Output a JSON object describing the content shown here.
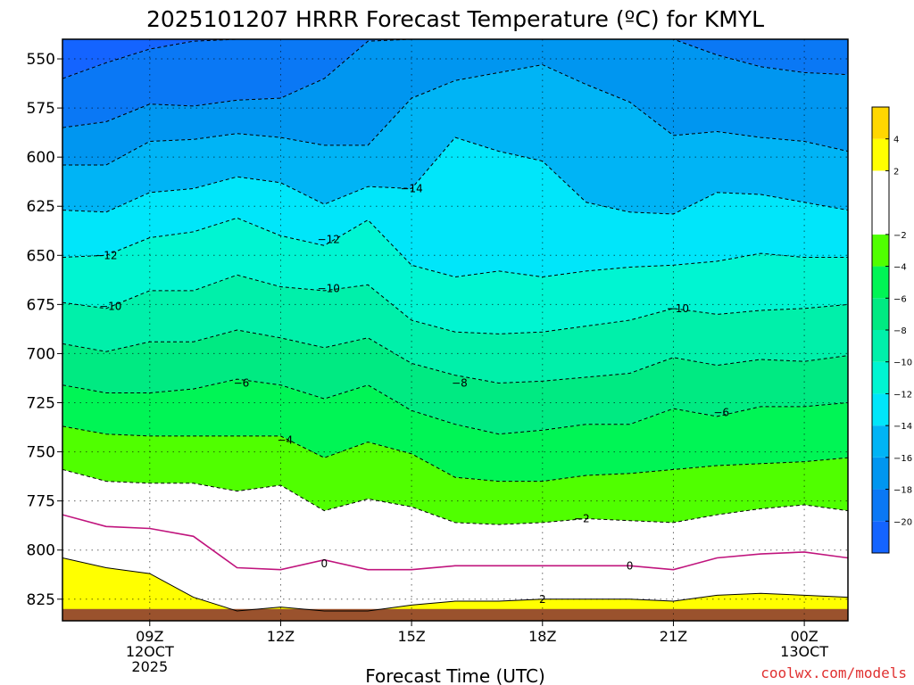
{
  "title": "2025101207 HRRR Forecast Temperature (ºC) for KMYL",
  "xlabel": "Forecast Time (UTC)",
  "credit": "coolwx.com/models",
  "chart_data": {
    "type": "contour",
    "variable": "Temperature (°C)",
    "y_axis": {
      "ticks": [
        550,
        575,
        600,
        625,
        650,
        675,
        700,
        725,
        750,
        775,
        800,
        825
      ],
      "range": [
        540,
        836
      ],
      "inverted": true
    },
    "x_axis": {
      "range_hours": [
        7,
        25
      ],
      "ticks": [
        {
          "hour": 9,
          "lines": [
            "09Z",
            "12OCT",
            "2025"
          ]
        },
        {
          "hour": 12,
          "lines": [
            "12Z"
          ]
        },
        {
          "hour": 15,
          "lines": [
            "15Z"
          ]
        },
        {
          "hour": 18,
          "lines": [
            "18Z"
          ]
        },
        {
          "hour": 21,
          "lines": [
            "21Z"
          ]
        },
        {
          "hour": 24,
          "lines": [
            "00Z",
            "13OCT"
          ]
        }
      ]
    },
    "grid": "dotted",
    "hours": [
      7,
      8,
      9,
      10,
      11,
      12,
      13,
      14,
      15,
      16,
      17,
      18,
      19,
      20,
      21,
      22,
      23,
      24,
      25
    ],
    "isotherms": [
      {
        "level": -20,
        "p": [
          560,
          552,
          545,
          541,
          540,
          540,
          540,
          540,
          540,
          540,
          540,
          540,
          540,
          540,
          540,
          540,
          540,
          540,
          540
        ]
      },
      {
        "level": -18,
        "p": [
          585,
          582,
          573,
          574,
          571,
          570,
          560,
          541,
          540,
          540,
          540,
          540,
          540,
          540,
          540,
          548,
          554,
          557,
          558
        ]
      },
      {
        "level": -16,
        "p": [
          604,
          604,
          592,
          591,
          588,
          590,
          594,
          594,
          570,
          561,
          557,
          553,
          563,
          572,
          589,
          587,
          590,
          592,
          597
        ]
      },
      {
        "level": -14,
        "p": [
          627,
          628,
          618,
          616,
          610,
          613,
          624,
          615,
          616,
          590,
          597,
          602,
          623,
          628,
          629,
          618,
          619,
          623,
          627
        ]
      },
      {
        "level": -12,
        "p": [
          651,
          650,
          641,
          638,
          631,
          640,
          645,
          632,
          655,
          661,
          658,
          661,
          658,
          656,
          655,
          653,
          649,
          651,
          651
        ]
      },
      {
        "level": -10,
        "p": [
          674,
          677,
          668,
          668,
          660,
          666,
          668,
          665,
          683,
          689,
          690,
          689,
          686,
          683,
          677,
          680,
          678,
          677,
          675
        ]
      },
      {
        "level": -8,
        "p": [
          695,
          699,
          694,
          694,
          688,
          692,
          697,
          692,
          705,
          711,
          715,
          714,
          712,
          710,
          702,
          706,
          703,
          704,
          701
        ]
      },
      {
        "level": -6,
        "p": [
          716,
          720,
          720,
          718,
          713,
          716,
          723,
          716,
          729,
          736,
          741,
          739,
          736,
          736,
          728,
          732,
          727,
          727,
          725
        ]
      },
      {
        "level": -4,
        "p": [
          737,
          741,
          742,
          742,
          742,
          742,
          753,
          745,
          751,
          763,
          765,
          765,
          762,
          761,
          759,
          757,
          756,
          755,
          753
        ]
      },
      {
        "level": -2,
        "p": [
          759,
          765,
          766,
          766,
          770,
          767,
          780,
          774,
          778,
          786,
          787,
          786,
          784,
          785,
          786,
          782,
          779,
          777,
          780
        ]
      },
      {
        "level": 0,
        "p": [
          782,
          788,
          789,
          793,
          809,
          810,
          805,
          810,
          810,
          808,
          808,
          808,
          808,
          808,
          810,
          804,
          802,
          801,
          804
        ]
      },
      {
        "level": 2,
        "p": [
          804,
          809,
          812,
          824,
          831,
          829,
          831,
          831,
          828,
          826,
          826,
          825,
          825,
          825,
          826,
          823,
          822,
          823,
          824
        ]
      }
    ],
    "contour_labels": [
      {
        "text": "−14",
        "hour": 15,
        "p": 616
      },
      {
        "text": "−12",
        "hour": 8.0,
        "p": 650
      },
      {
        "text": "−12",
        "hour": 13.1,
        "p": 642
      },
      {
        "text": "−10",
        "hour": 8.1,
        "p": 676
      },
      {
        "text": "−10",
        "hour": 13.1,
        "p": 667
      },
      {
        "text": "−10",
        "hour": 21.1,
        "p": 677
      },
      {
        "text": "−8",
        "hour": 16.1,
        "p": 715
      },
      {
        "text": "−6",
        "hour": 11.1,
        "p": 715
      },
      {
        "text": "−6",
        "hour": 22.1,
        "p": 730
      },
      {
        "text": "−4",
        "hour": 12.1,
        "p": 744
      },
      {
        "text": "−2",
        "hour": 18.9,
        "p": 784
      },
      {
        "text": "0",
        "hour": 13.0,
        "p": 807
      },
      {
        "text": "0",
        "hour": 20.0,
        "p": 808
      },
      {
        "text": "2",
        "hour": 18.0,
        "p": 825
      }
    ],
    "colorbar": {
      "bands": [
        {
          "from": -22,
          "to": -20,
          "color": "#1464ff"
        },
        {
          "from": -20,
          "to": -18,
          "color": "#0a78f5"
        },
        {
          "from": -18,
          "to": -16,
          "color": "#0096f0"
        },
        {
          "from": -16,
          "to": -14,
          "color": "#00b4f5"
        },
        {
          "from": -14,
          "to": -12,
          "color": "#00e6fa"
        },
        {
          "from": -12,
          "to": -10,
          "color": "#00f5d2"
        },
        {
          "from": -10,
          "to": -8,
          "color": "#00f0aa"
        },
        {
          "from": -8,
          "to": -6,
          "color": "#00ea82"
        },
        {
          "from": -6,
          "to": -4,
          "color": "#00f555"
        },
        {
          "from": -4,
          "to": -2,
          "color": "#50ff00"
        },
        {
          "from": -2,
          "to": 2,
          "color": "#ffffff"
        },
        {
          "from": 2,
          "to": 4,
          "color": "#ffff00"
        },
        {
          "from": 4,
          "to": 6,
          "color": "#ffd700"
        }
      ],
      "labels": [
        "4",
        "2",
        "−2",
        "−4",
        "−6",
        "−8",
        "−10",
        "−12",
        "−14",
        "−16",
        "−18",
        "−20"
      ]
    },
    "ground": {
      "p_top": 830,
      "color": "#9a522d"
    }
  }
}
